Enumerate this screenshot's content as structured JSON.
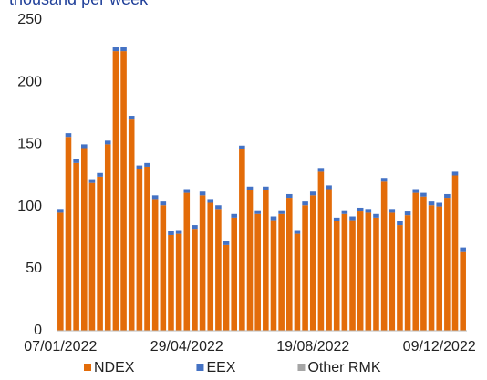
{
  "chart_data": {
    "type": "bar",
    "stacked": true,
    "title": "thousand per week",
    "categories": [
      "07/01/2022",
      null,
      null,
      null,
      null,
      null,
      null,
      null,
      null,
      null,
      null,
      null,
      null,
      null,
      null,
      null,
      "29/04/2022",
      null,
      null,
      null,
      null,
      null,
      null,
      null,
      null,
      null,
      null,
      null,
      null,
      null,
      null,
      null,
      "19/08/2022",
      null,
      null,
      null,
      null,
      null,
      null,
      null,
      null,
      null,
      null,
      null,
      null,
      null,
      null,
      null,
      "09/12/2022",
      null,
      null,
      null
    ],
    "series": [
      {
        "name": "NDEX",
        "color": "#e36c09",
        "values": [
          95,
          156,
          135,
          147,
          119,
          124,
          150,
          225,
          225,
          170,
          130,
          132,
          106,
          101,
          77,
          78,
          111,
          82,
          109,
          103,
          98,
          69,
          91,
          146,
          113,
          94,
          113,
          89,
          94,
          107,
          78,
          101,
          109,
          128,
          114,
          88,
          94,
          89,
          96,
          95,
          91,
          120,
          95,
          85,
          93,
          111,
          108,
          101,
          100,
          107,
          125,
          64
        ]
      },
      {
        "name": "EEX",
        "color": "#4472c4",
        "values": [
          3,
          3,
          3,
          3,
          3,
          3,
          3,
          3,
          3,
          3,
          3,
          3,
          3,
          3,
          3,
          3,
          3,
          3,
          3,
          3,
          3,
          3,
          3,
          3,
          3,
          3,
          3,
          3,
          3,
          3,
          3,
          3,
          3,
          3,
          3,
          3,
          3,
          3,
          3,
          3,
          3,
          3,
          3,
          3,
          3,
          3,
          3,
          3,
          3,
          3,
          3,
          3
        ]
      },
      {
        "name": "Other RMK",
        "color": "#a5a5a5",
        "values": [
          0,
          0,
          0,
          0,
          0,
          0,
          0,
          0,
          0,
          0,
          0,
          0,
          0,
          0,
          0,
          0,
          0,
          0,
          0,
          0,
          0,
          0,
          0,
          0,
          0,
          0,
          0,
          0,
          0,
          0,
          0,
          0,
          0,
          0,
          0,
          0,
          0,
          0,
          0,
          0,
          0,
          0,
          0,
          0,
          0,
          0,
          0,
          0,
          0,
          0,
          0,
          0
        ]
      }
    ],
    "ylim": [
      0,
      250
    ],
    "yticks": [
      0,
      50,
      100,
      150,
      200,
      250
    ],
    "grid": false,
    "legend": "bottom"
  }
}
